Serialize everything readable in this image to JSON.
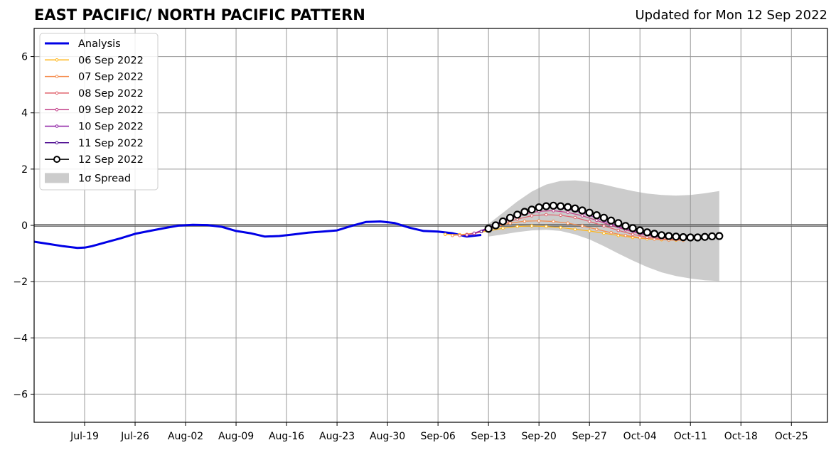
{
  "header": {
    "title": "EAST PACIFIC/ NORTH PACIFIC PATTERN",
    "updated": "Updated for Mon 12 Sep 2022"
  },
  "chart_data": {
    "type": "line",
    "title": "EAST PACIFIC/ NORTH PACIFIC PATTERN",
    "xlabel": "",
    "ylabel": "",
    "x_axis": {
      "type": "date",
      "range": [
        "2022-07-12",
        "2022-10-30"
      ],
      "tick_dates": [
        "2022-07-19",
        "2022-07-26",
        "2022-08-02",
        "2022-08-09",
        "2022-08-16",
        "2022-08-23",
        "2022-08-30",
        "2022-09-06",
        "2022-09-13",
        "2022-09-20",
        "2022-09-27",
        "2022-10-04",
        "2022-10-11",
        "2022-10-18",
        "2022-10-25"
      ],
      "tick_labels": [
        "Jul-19",
        "Jul-26",
        "Aug-02",
        "Aug-09",
        "Aug-16",
        "Aug-23",
        "Aug-30",
        "Sep-06",
        "Sep-13",
        "Sep-20",
        "Sep-27",
        "Oct-04",
        "Oct-11",
        "Oct-18",
        "Oct-25"
      ]
    },
    "y_axis": {
      "range": [
        -7,
        7
      ],
      "ticks": [
        -6,
        -4,
        -2,
        0,
        2,
        4,
        6
      ],
      "tick_labels": [
        "−6",
        "−4",
        "−2",
        "0",
        "2",
        "4",
        "6"
      ]
    },
    "grid": true,
    "legend_position": "top-left",
    "analysis": {
      "name": "Analysis",
      "color": "#0000e6",
      "points": [
        [
          "2022-07-12",
          -0.58
        ],
        [
          "2022-07-14",
          -0.66
        ],
        [
          "2022-07-16",
          -0.74
        ],
        [
          "2022-07-18",
          -0.8
        ],
        [
          "2022-07-19",
          -0.79
        ],
        [
          "2022-07-20",
          -0.74
        ],
        [
          "2022-07-22",
          -0.6
        ],
        [
          "2022-07-24",
          -0.46
        ],
        [
          "2022-07-26",
          -0.3
        ],
        [
          "2022-07-28",
          -0.2
        ],
        [
          "2022-07-30",
          -0.1
        ],
        [
          "2022-08-01",
          -0.01
        ],
        [
          "2022-08-03",
          0.02
        ],
        [
          "2022-08-05",
          0.01
        ],
        [
          "2022-08-07",
          -0.05
        ],
        [
          "2022-08-09",
          -0.2
        ],
        [
          "2022-08-11",
          -0.28
        ],
        [
          "2022-08-13",
          -0.4
        ],
        [
          "2022-08-15",
          -0.38
        ],
        [
          "2022-08-17",
          -0.32
        ],
        [
          "2022-08-19",
          -0.26
        ],
        [
          "2022-08-21",
          -0.22
        ],
        [
          "2022-08-23",
          -0.18
        ],
        [
          "2022-08-25",
          -0.02
        ],
        [
          "2022-08-27",
          0.12
        ],
        [
          "2022-08-29",
          0.14
        ],
        [
          "2022-08-31",
          0.08
        ],
        [
          "2022-09-02",
          -0.08
        ],
        [
          "2022-09-04",
          -0.2
        ],
        [
          "2022-09-06",
          -0.22
        ],
        [
          "2022-09-08",
          -0.28
        ],
        [
          "2022-09-10",
          -0.4
        ],
        [
          "2022-09-12",
          -0.34
        ]
      ]
    },
    "forecasts": [
      {
        "name": "06 Sep 2022",
        "color": "#ffb619",
        "points": [
          [
            "2022-09-07",
            -0.32
          ],
          [
            "2022-09-09",
            -0.33
          ],
          [
            "2022-09-11",
            -0.28
          ],
          [
            "2022-09-13",
            -0.2
          ],
          [
            "2022-09-15",
            -0.1
          ],
          [
            "2022-09-17",
            -0.04
          ],
          [
            "2022-09-19",
            -0.02
          ],
          [
            "2022-09-21",
            -0.04
          ],
          [
            "2022-09-23",
            -0.08
          ],
          [
            "2022-09-25",
            -0.14
          ],
          [
            "2022-09-27",
            -0.2
          ],
          [
            "2022-09-29",
            -0.28
          ],
          [
            "2022-10-01",
            -0.36
          ],
          [
            "2022-10-03",
            -0.43
          ],
          [
            "2022-10-05",
            -0.48
          ],
          [
            "2022-10-07",
            -0.51
          ],
          [
            "2022-10-09",
            -0.52
          ]
        ]
      },
      {
        "name": "07 Sep 2022",
        "color": "#f58b4b",
        "points": [
          [
            "2022-09-08",
            -0.36
          ],
          [
            "2022-09-10",
            -0.32
          ],
          [
            "2022-09-12",
            -0.22
          ],
          [
            "2022-09-14",
            -0.06
          ],
          [
            "2022-09-16",
            0.08
          ],
          [
            "2022-09-18",
            0.15
          ],
          [
            "2022-09-20",
            0.16
          ],
          [
            "2022-09-22",
            0.14
          ],
          [
            "2022-09-24",
            0.08
          ],
          [
            "2022-09-26",
            -0.02
          ],
          [
            "2022-09-28",
            -0.14
          ],
          [
            "2022-09-30",
            -0.26
          ],
          [
            "2022-10-02",
            -0.36
          ],
          [
            "2022-10-04",
            -0.44
          ],
          [
            "2022-10-06",
            -0.49
          ],
          [
            "2022-10-08",
            -0.52
          ],
          [
            "2022-10-10",
            -0.53
          ]
        ]
      },
      {
        "name": "08 Sep 2022",
        "color": "#e1626c",
        "points": [
          [
            "2022-09-09",
            -0.36
          ],
          [
            "2022-09-11",
            -0.3
          ],
          [
            "2022-09-13",
            -0.14
          ],
          [
            "2022-09-15",
            0.06
          ],
          [
            "2022-09-17",
            0.22
          ],
          [
            "2022-09-19",
            0.34
          ],
          [
            "2022-09-21",
            0.38
          ],
          [
            "2022-09-23",
            0.36
          ],
          [
            "2022-09-25",
            0.28
          ],
          [
            "2022-09-27",
            0.14
          ],
          [
            "2022-09-29",
            -0.02
          ],
          [
            "2022-10-01",
            -0.18
          ],
          [
            "2022-10-03",
            -0.32
          ],
          [
            "2022-10-05",
            -0.42
          ],
          [
            "2022-10-07",
            -0.48
          ],
          [
            "2022-10-09",
            -0.5
          ],
          [
            "2022-10-11",
            -0.49
          ]
        ]
      },
      {
        "name": "09 Sep 2022",
        "color": "#c13f88",
        "points": [
          [
            "2022-09-10",
            -0.34
          ],
          [
            "2022-09-12",
            -0.22
          ],
          [
            "2022-09-14",
            0.0
          ],
          [
            "2022-09-16",
            0.22
          ],
          [
            "2022-09-18",
            0.4
          ],
          [
            "2022-09-20",
            0.5
          ],
          [
            "2022-09-22",
            0.52
          ],
          [
            "2022-09-24",
            0.46
          ],
          [
            "2022-09-26",
            0.34
          ],
          [
            "2022-09-28",
            0.18
          ],
          [
            "2022-09-30",
            0.0
          ],
          [
            "2022-10-02",
            -0.16
          ],
          [
            "2022-10-04",
            -0.3
          ],
          [
            "2022-10-06",
            -0.4
          ],
          [
            "2022-10-08",
            -0.45
          ],
          [
            "2022-10-10",
            -0.46
          ],
          [
            "2022-10-12",
            -0.44
          ]
        ]
      },
      {
        "name": "10 Sep 2022",
        "color": "#8e1fa3",
        "points": [
          [
            "2022-09-11",
            -0.28
          ],
          [
            "2022-09-13",
            -0.08
          ],
          [
            "2022-09-15",
            0.18
          ],
          [
            "2022-09-17",
            0.4
          ],
          [
            "2022-09-19",
            0.56
          ],
          [
            "2022-09-21",
            0.64
          ],
          [
            "2022-09-23",
            0.62
          ],
          [
            "2022-09-25",
            0.52
          ],
          [
            "2022-09-27",
            0.36
          ],
          [
            "2022-09-29",
            0.16
          ],
          [
            "2022-10-01",
            -0.04
          ],
          [
            "2022-10-03",
            -0.2
          ],
          [
            "2022-10-05",
            -0.32
          ],
          [
            "2022-10-07",
            -0.4
          ],
          [
            "2022-10-09",
            -0.43
          ],
          [
            "2022-10-11",
            -0.43
          ],
          [
            "2022-10-13",
            -0.4
          ]
        ]
      },
      {
        "name": "11 Sep 2022",
        "color": "#4d0c90",
        "points": [
          [
            "2022-09-12",
            -0.22
          ],
          [
            "2022-09-14",
            0.04
          ],
          [
            "2022-09-16",
            0.3
          ],
          [
            "2022-09-18",
            0.5
          ],
          [
            "2022-09-20",
            0.63
          ],
          [
            "2022-09-22",
            0.68
          ],
          [
            "2022-09-24",
            0.64
          ],
          [
            "2022-09-26",
            0.54
          ],
          [
            "2022-09-28",
            0.38
          ],
          [
            "2022-09-30",
            0.18
          ],
          [
            "2022-10-02",
            -0.02
          ],
          [
            "2022-10-04",
            -0.18
          ],
          [
            "2022-10-06",
            -0.3
          ],
          [
            "2022-10-08",
            -0.38
          ],
          [
            "2022-10-10",
            -0.42
          ],
          [
            "2022-10-12",
            -0.42
          ],
          [
            "2022-10-14",
            -0.38
          ]
        ]
      },
      {
        "name": "12 Sep 2022",
        "color": "#000000",
        "points": [
          [
            "2022-09-13",
            -0.12
          ],
          [
            "2022-09-14",
            0.0
          ],
          [
            "2022-09-15",
            0.14
          ],
          [
            "2022-09-16",
            0.27
          ],
          [
            "2022-09-17",
            0.38
          ],
          [
            "2022-09-18",
            0.48
          ],
          [
            "2022-09-19",
            0.56
          ],
          [
            "2022-09-20",
            0.64
          ],
          [
            "2022-09-21",
            0.68
          ],
          [
            "2022-09-22",
            0.7
          ],
          [
            "2022-09-23",
            0.68
          ],
          [
            "2022-09-24",
            0.65
          ],
          [
            "2022-09-25",
            0.6
          ],
          [
            "2022-09-26",
            0.53
          ],
          [
            "2022-09-27",
            0.45
          ],
          [
            "2022-09-28",
            0.36
          ],
          [
            "2022-09-29",
            0.27
          ],
          [
            "2022-09-30",
            0.17
          ],
          [
            "2022-10-01",
            0.08
          ],
          [
            "2022-10-02",
            -0.02
          ],
          [
            "2022-10-03",
            -0.1
          ],
          [
            "2022-10-04",
            -0.18
          ],
          [
            "2022-10-05",
            -0.25
          ],
          [
            "2022-10-06",
            -0.3
          ],
          [
            "2022-10-07",
            -0.35
          ],
          [
            "2022-10-08",
            -0.38
          ],
          [
            "2022-10-09",
            -0.4
          ],
          [
            "2022-10-10",
            -0.42
          ],
          [
            "2022-10-11",
            -0.43
          ],
          [
            "2022-10-12",
            -0.43
          ],
          [
            "2022-10-13",
            -0.41
          ],
          [
            "2022-10-14",
            -0.39
          ],
          [
            "2022-10-15",
            -0.38
          ]
        ]
      }
    ],
    "spread": {
      "name": "1σ Spread",
      "color": "#cccccc",
      "points": [
        [
          "2022-09-13",
          0.05,
          -0.4
        ],
        [
          "2022-09-15",
          0.45,
          -0.32
        ],
        [
          "2022-09-17",
          0.85,
          -0.24
        ],
        [
          "2022-09-19",
          1.2,
          -0.18
        ],
        [
          "2022-09-21",
          1.45,
          -0.16
        ],
        [
          "2022-09-23",
          1.58,
          -0.2
        ],
        [
          "2022-09-25",
          1.6,
          -0.32
        ],
        [
          "2022-09-27",
          1.55,
          -0.5
        ],
        [
          "2022-09-29",
          1.45,
          -0.74
        ],
        [
          "2022-10-01",
          1.33,
          -1.0
        ],
        [
          "2022-10-03",
          1.22,
          -1.25
        ],
        [
          "2022-10-05",
          1.13,
          -1.48
        ],
        [
          "2022-10-07",
          1.08,
          -1.67
        ],
        [
          "2022-10-09",
          1.06,
          -1.8
        ],
        [
          "2022-10-11",
          1.08,
          -1.89
        ],
        [
          "2022-10-13",
          1.14,
          -1.95
        ],
        [
          "2022-10-15",
          1.22,
          -1.98
        ]
      ]
    }
  }
}
